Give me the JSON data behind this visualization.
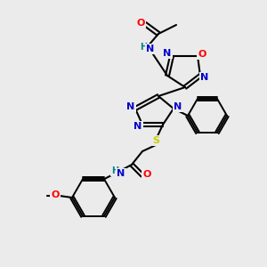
{
  "bg_color": "#ebebeb",
  "atom_colors": {
    "C": "#000000",
    "N": "#0000cc",
    "O": "#ff0000",
    "S": "#cccc00",
    "H": "#008080"
  },
  "bond_color": "#000000"
}
